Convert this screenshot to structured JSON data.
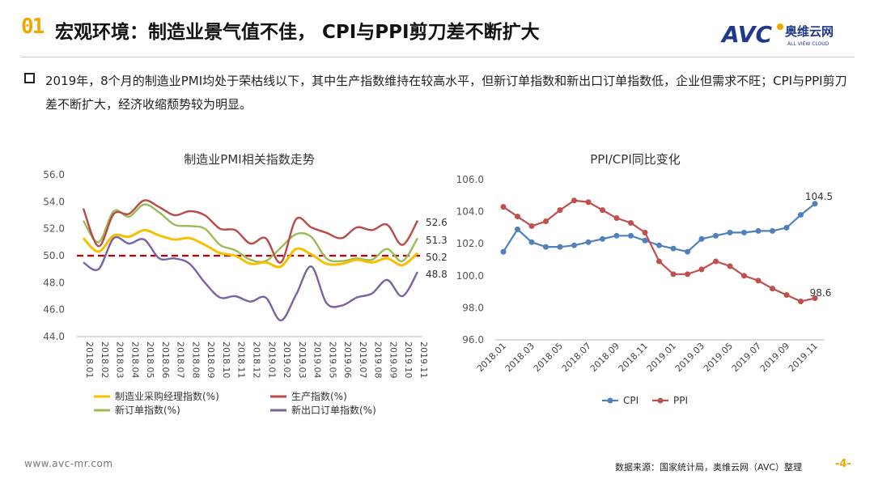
{
  "header": {
    "slide_number": "01",
    "title": "宏观环境：制造业景气值不佳， CPI与PPI剪刀差不断扩大",
    "logo_text": "AVC",
    "logo_cn": "奥维云网",
    "logo_en": "ALL VIEW CLOUD"
  },
  "bullet": {
    "text": "2019年，8个月的制造业PMI均处于荣枯线以下，其中生产指数维持在较高水平，但新订单指数和新出口订单指数低，企业但需求不旺；CPI与PPI剪刀差不断扩大，经济收缩颓势较为明显。"
  },
  "footer": {
    "website": "www.avc-mr.com",
    "source": "数据来源：国家统计局，奥维云网（AVC）整理",
    "page": "-4-"
  },
  "colors": {
    "accent": "#f0a800",
    "pmi": "#f5c000",
    "production": "#b94a48",
    "new_orders": "#9bbb59",
    "export_orders": "#7b62a3",
    "cpi": "#4f81bd",
    "ppi": "#c0504d",
    "threshold": "#c00000"
  },
  "chart_data": [
    {
      "type": "line",
      "title": "制造业PMI相关指数走势",
      "categories": [
        "2018.01",
        "2018.02",
        "2018.03",
        "2018.04",
        "2018.05",
        "2018.06",
        "2018.07",
        "2018.08",
        "2018.09",
        "2018.10",
        "2018.11",
        "2018.12",
        "2019.01",
        "2019.02",
        "2019.03",
        "2019.04",
        "2019.05",
        "2019.06",
        "2019.07",
        "2019.08",
        "2019.09",
        "2019.10",
        "2019.11"
      ],
      "ylim": [
        44.0,
        56.0
      ],
      "yticks": [
        "44.0",
        "46.0",
        "48.0",
        "50.0",
        "52.0",
        "54.0",
        "56.0"
      ],
      "reference_line": 50.0,
      "legend": "bottom",
      "series": [
        {
          "name": "制造业采购经理指数(%)",
          "color_key": "pmi",
          "values": [
            51.3,
            50.3,
            51.5,
            51.4,
            51.9,
            51.5,
            51.2,
            51.3,
            50.8,
            50.2,
            50.0,
            49.4,
            49.5,
            49.2,
            50.5,
            50.1,
            49.4,
            49.4,
            49.7,
            49.5,
            49.8,
            49.3,
            50.2
          ],
          "end_label": "50.2"
        },
        {
          "name": "生产指数(%)",
          "color_key": "production",
          "values": [
            53.5,
            50.7,
            53.1,
            53.1,
            54.1,
            53.6,
            53.0,
            53.3,
            53.0,
            52.0,
            51.9,
            50.9,
            51.3,
            49.5,
            52.7,
            52.1,
            51.7,
            51.3,
            52.1,
            51.9,
            52.3,
            50.8,
            52.6
          ],
          "end_label": "52.6"
        },
        {
          "name": "新订单指数(%)",
          "color_key": "new_orders",
          "values": [
            52.6,
            51.0,
            53.3,
            52.9,
            53.8,
            53.2,
            52.3,
            52.2,
            52.0,
            50.8,
            50.4,
            49.7,
            49.6,
            50.6,
            51.6,
            51.4,
            49.8,
            49.6,
            49.8,
            49.7,
            50.5,
            49.6,
            51.3
          ],
          "end_label": "51.3"
        },
        {
          "name": "新出口订单指数(%)",
          "color_key": "export_orders",
          "values": [
            49.5,
            49.0,
            51.3,
            50.9,
            51.2,
            49.8,
            49.8,
            49.4,
            48.0,
            46.9,
            47.0,
            46.6,
            46.9,
            45.2,
            47.1,
            49.2,
            46.5,
            46.3,
            46.9,
            47.2,
            48.2,
            47.0,
            48.8
          ],
          "end_label": "48.8"
        }
      ]
    },
    {
      "type": "line",
      "title": "PPI/CPI同比变化",
      "categories": [
        "2018.01",
        "2018.02",
        "2018.03",
        "2018.04",
        "2018.05",
        "2018.06",
        "2018.07",
        "2018.08",
        "2018.09",
        "2018.10",
        "2018.11",
        "2018.12",
        "2019.01",
        "2019.02",
        "2019.03",
        "2019.04",
        "2019.05",
        "2019.06",
        "2019.07",
        "2019.08",
        "2019.09",
        "2019.10",
        "2019.11"
      ],
      "tick_labels": [
        "2018.01",
        "2018.03",
        "2018.05",
        "2018.07",
        "2018.09",
        "2018.11",
        "2019.01",
        "2019.03",
        "2019.05",
        "2019.07",
        "2019.09",
        "2019.11"
      ],
      "ylim": [
        96.0,
        106.0
      ],
      "yticks": [
        "96.0",
        "98.0",
        "100.0",
        "102.0",
        "104.0",
        "106.0"
      ],
      "legend": "bottom",
      "series": [
        {
          "name": "CPI",
          "color_key": "cpi",
          "values": [
            101.5,
            102.9,
            102.1,
            101.8,
            101.8,
            101.9,
            102.1,
            102.3,
            102.5,
            102.5,
            102.2,
            101.9,
            101.7,
            101.5,
            102.3,
            102.5,
            102.7,
            102.7,
            102.8,
            102.8,
            103.0,
            103.8,
            104.5
          ],
          "end_label": "104.5"
        },
        {
          "name": "PPI",
          "color_key": "ppi",
          "values": [
            104.3,
            103.7,
            103.1,
            103.4,
            104.1,
            104.7,
            104.6,
            104.1,
            103.6,
            103.3,
            102.7,
            100.9,
            100.1,
            100.1,
            100.4,
            100.9,
            100.6,
            100.0,
            99.7,
            99.2,
            98.8,
            98.4,
            98.6
          ],
          "end_label": "98.6"
        }
      ]
    }
  ]
}
